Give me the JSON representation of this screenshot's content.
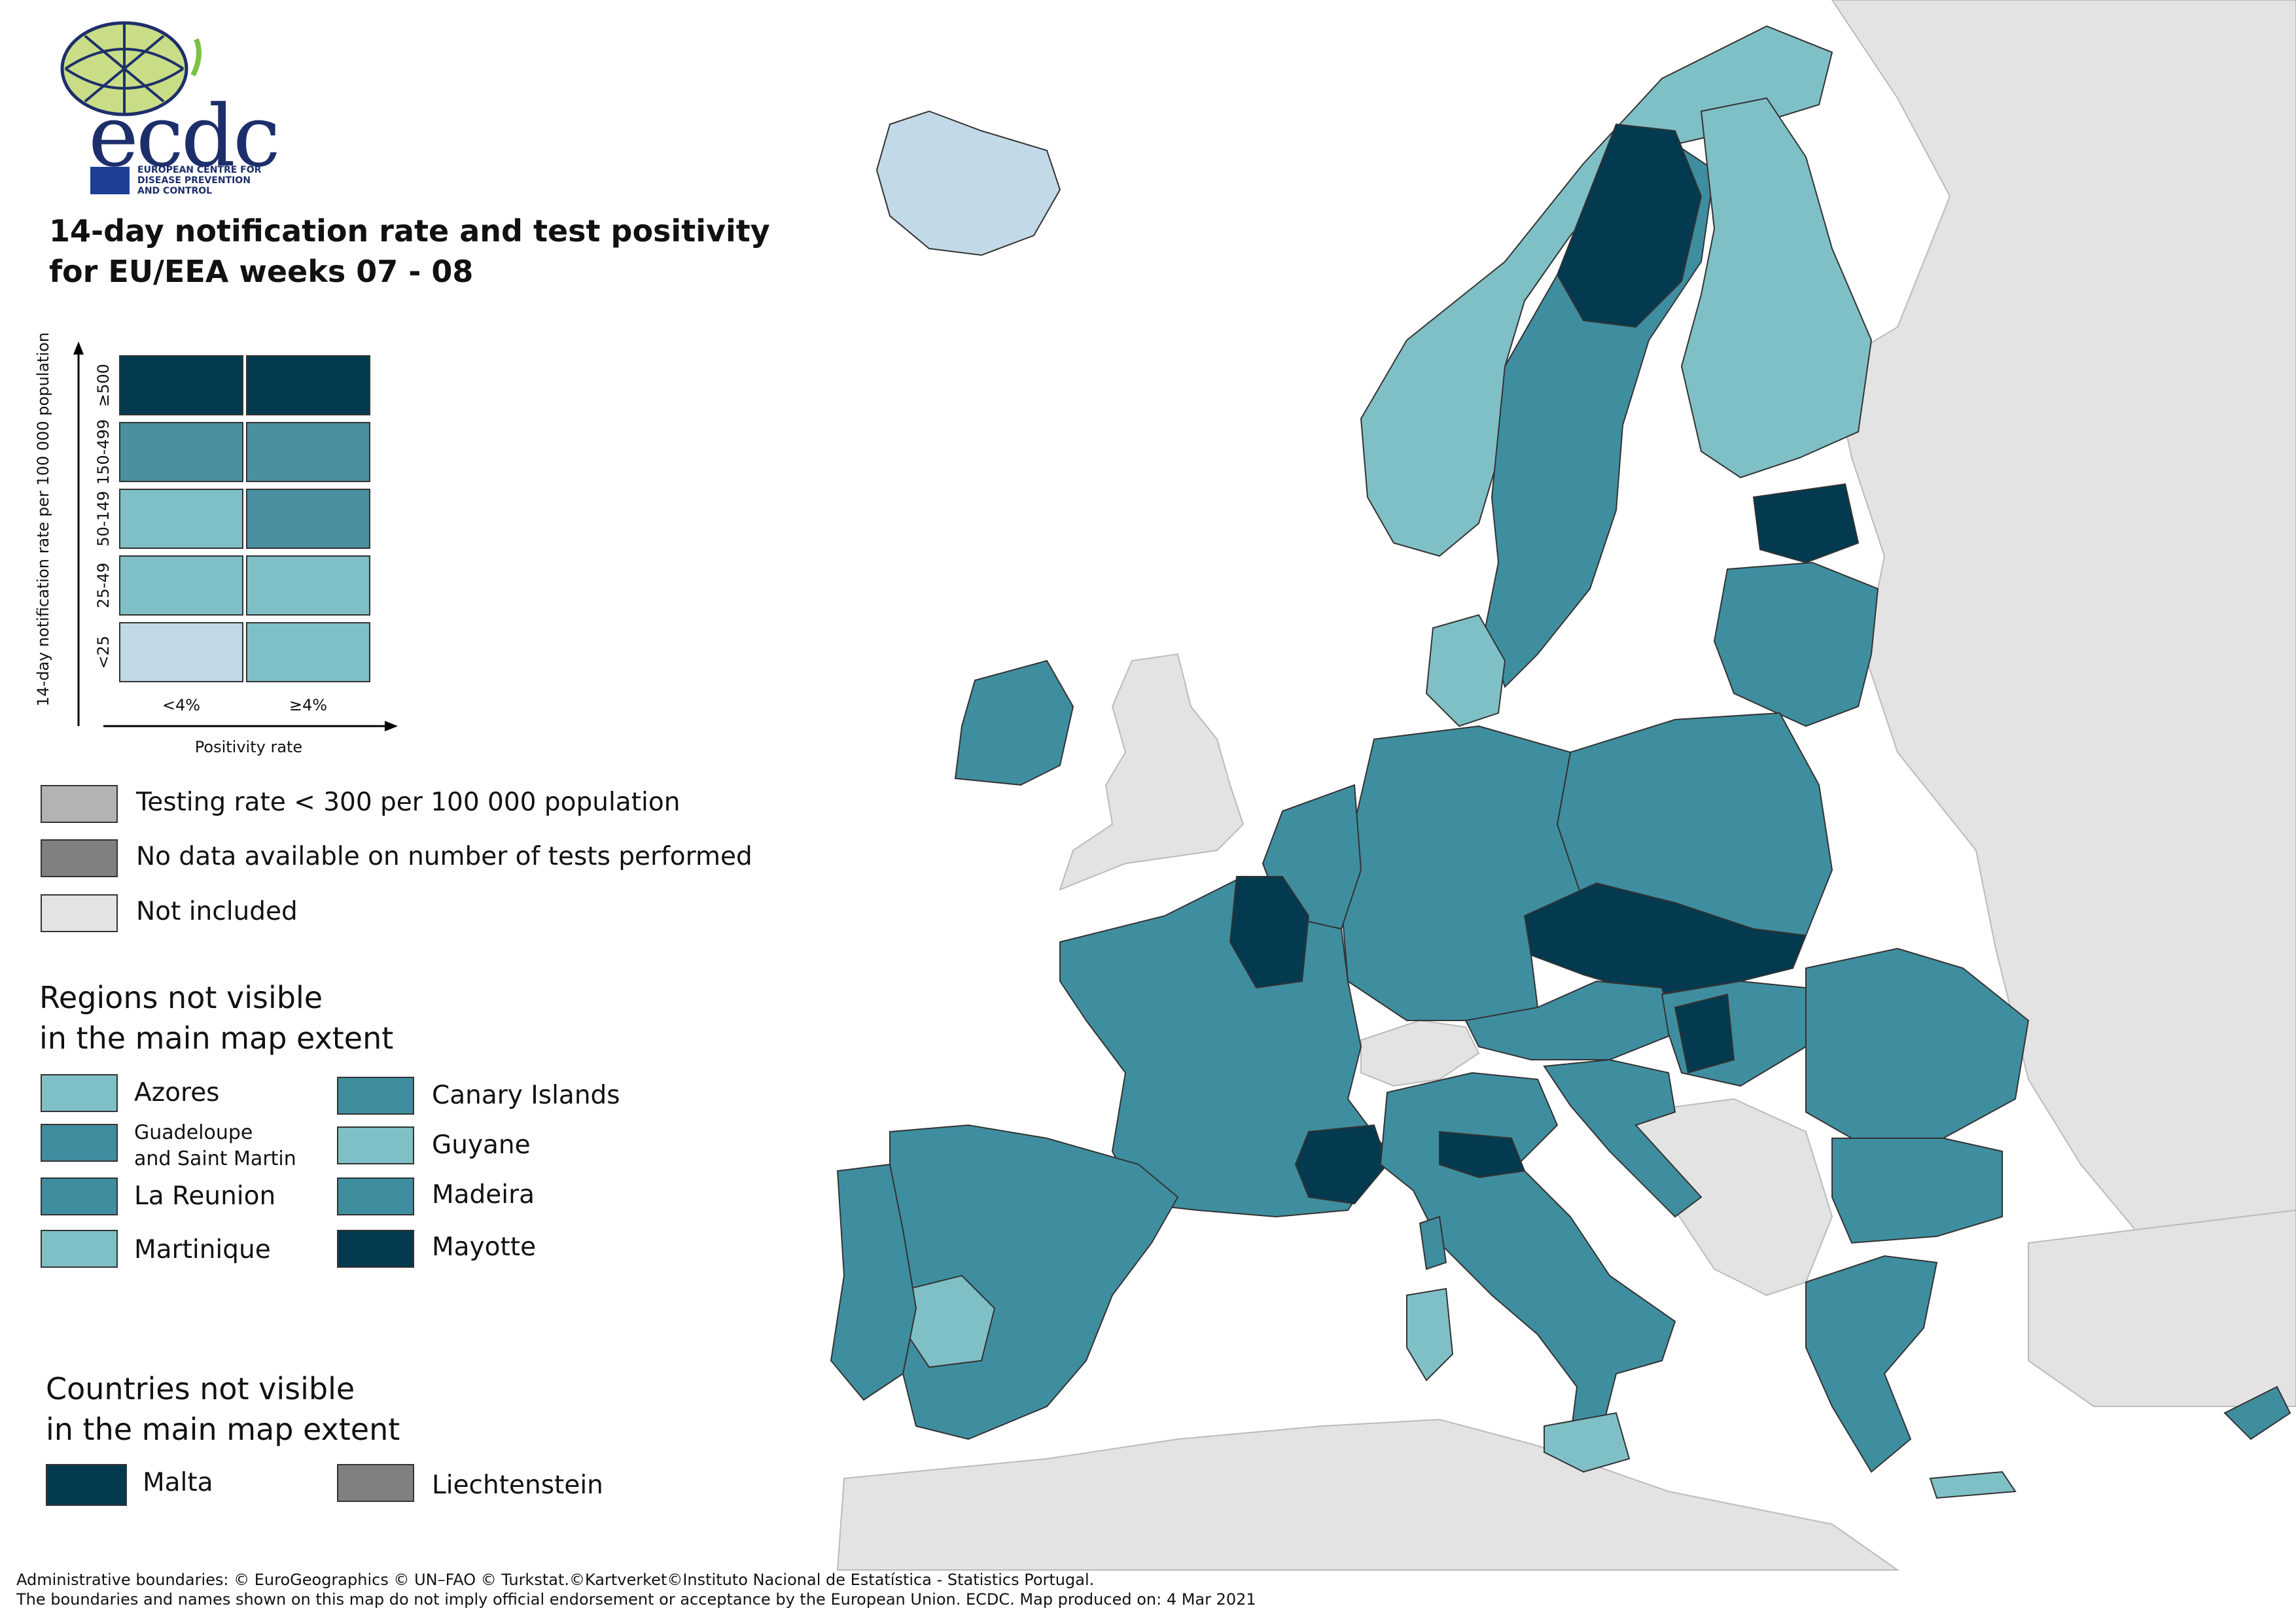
{
  "header": {
    "logo_text": "ecdc",
    "logo_subtitle": [
      "EUROPEAN CENTRE FOR",
      "DISEASE PREVENTION",
      "AND CONTROL"
    ],
    "title_line1": "14-day notification rate and test positivity",
    "title_line2": "for EU/EEA weeks 07 - 08"
  },
  "bivariate_legend": {
    "y_axis_label": "14-day notification rate per 100 000 population",
    "x_axis_label": "Positivity rate",
    "rows": [
      "≥500",
      "150-499",
      "50-149",
      "25-49",
      "<25"
    ],
    "cols": [
      "<4%",
      "≥4%"
    ],
    "colors": [
      [
        "#033a4f",
        "#033a4f"
      ],
      [
        "#4a90a0",
        "#4a90a0"
      ],
      [
        "#7fc0c6",
        "#4a90a0"
      ],
      [
        "#7fc0c6",
        "#7fc0c6"
      ],
      [
        "#c2d9e7",
        "#7fc0c6"
      ]
    ]
  },
  "status_legend": [
    {
      "label": "Testing rate < 300 per 100 000 population",
      "color": "#b3b3b3"
    },
    {
      "label": "No data available on number of tests performed",
      "color": "#808080"
    },
    {
      "label": "Not included",
      "color": "#e3e3e3"
    }
  ],
  "regions_section": {
    "title_line1": "Regions not visible",
    "title_line2": "in the main map extent",
    "items": [
      {
        "label": "Azores",
        "color": "#7fc0c6"
      },
      {
        "label": "Canary Islands",
        "color": "#3f8ea0"
      },
      {
        "label": "Guadeloupe",
        "label2": "and Saint Martin",
        "color": "#3f8ea0"
      },
      {
        "label": "Guyane",
        "color": "#7fc0c6"
      },
      {
        "label": "La Reunion",
        "color": "#3f8ea0"
      },
      {
        "label": "Madeira",
        "color": "#3f8ea0"
      },
      {
        "label": "Martinique",
        "color": "#7fc0c6"
      },
      {
        "label": "Mayotte",
        "color": "#033a4f"
      }
    ]
  },
  "countries_section": {
    "title_line1": "Countries not visible",
    "title_line2": "in the main map extent",
    "items": [
      {
        "label": "Malta",
        "color": "#033a4f"
      },
      {
        "label": "Liechtenstein",
        "color": "#808080"
      }
    ]
  },
  "footer": {
    "line1": "Administrative boundaries: © EuroGeographics © UN–FAO © Turkstat.©Kartverket©Instituto Nacional de Estatística - Statistics Portugal.",
    "line2": "The boundaries and names shown on this map do not imply official endorsement or acceptance by the European Union. ECDC. Map produced on: 4 Mar 2021"
  },
  "map_colors": {
    "dark": "#033a4f",
    "mid": "#3f8ea0",
    "light": "#7fc0c6",
    "pale": "#c2d9e7",
    "not_included": "#e3e3e3",
    "sea": "#ffffff"
  }
}
